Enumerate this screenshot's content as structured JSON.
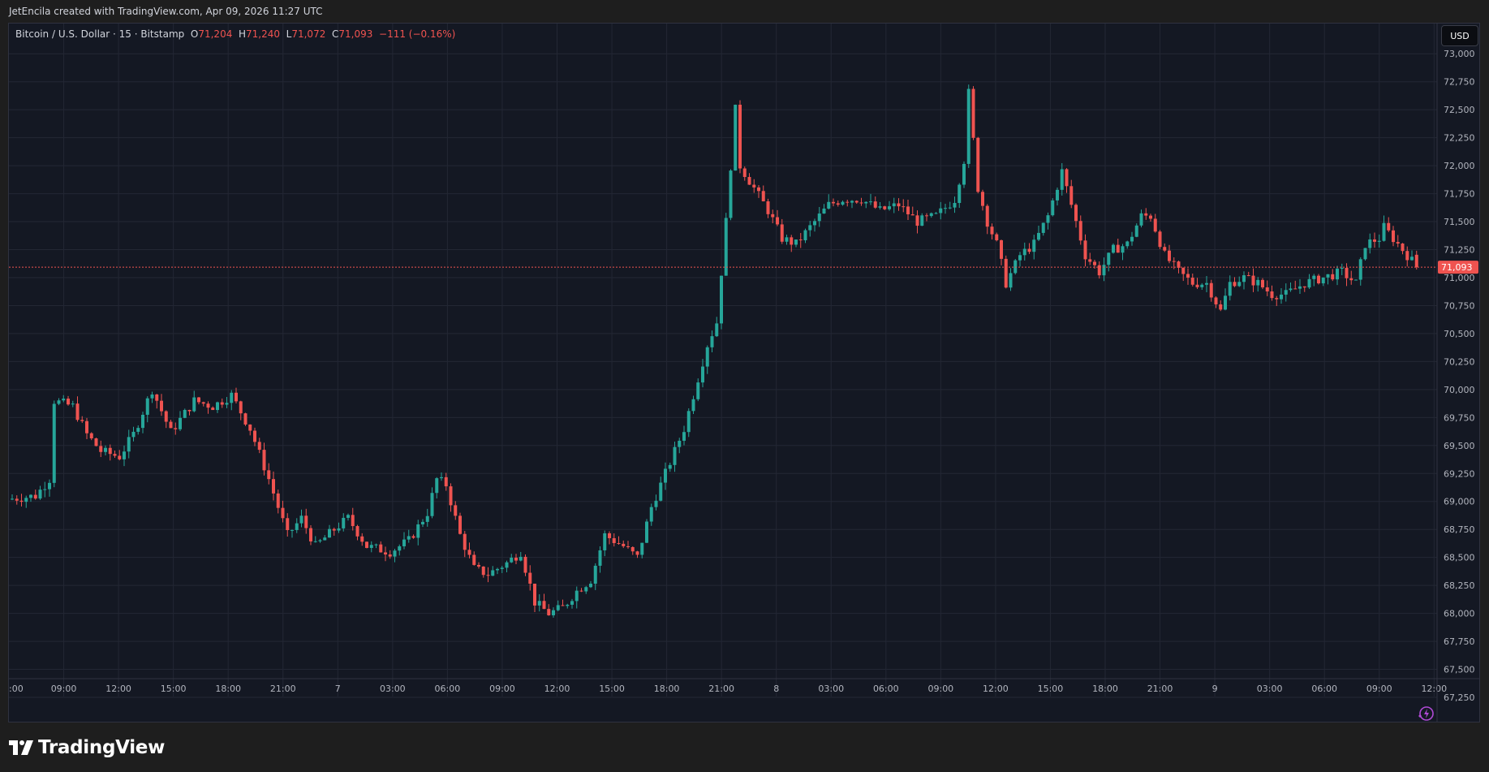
{
  "header": {
    "attribution": "JetEncila created with TradingView.com, Apr 09, 2026 11:27 UTC"
  },
  "legend": {
    "symbol": "Bitcoin / U.S. Dollar · 15 · Bitstamp",
    "o_label": "O",
    "o_value": "71,204",
    "h_label": "H",
    "h_value": "71,240",
    "l_label": "L",
    "l_value": "71,072",
    "c_label": "C",
    "c_value": "71,093",
    "change": "−111 (−0.16%)"
  },
  "currency_button": "USD",
  "footer": {
    "brand": "TradingView"
  },
  "colors": {
    "up": "#26a69a",
    "down": "#ef5350",
    "background": "#141823",
    "grid": "#232734",
    "text": "#d1d4dc"
  },
  "chart_data": {
    "type": "candlestick",
    "title": "Bitcoin / U.S. Dollar · 15 · Bitstamp",
    "ylim": [
      67250,
      73125
    ],
    "y_ticks": [
      "67,250",
      "67,500",
      "67,750",
      "68,000",
      "68,250",
      "68,500",
      "68,750",
      "69,000",
      "69,250",
      "69,500",
      "69,750",
      "70,000",
      "70,250",
      "70,500",
      "70,750",
      "71,000",
      "71,250",
      "71,500",
      "71,750",
      "72,000",
      "72,250",
      "72,500",
      "72,750",
      "73,000"
    ],
    "x_ticks": [
      ":00",
      "09:00",
      "12:00",
      "15:00",
      "18:00",
      "21:00",
      "7",
      "03:00",
      "06:00",
      "09:00",
      "12:00",
      "15:00",
      "18:00",
      "21:00",
      "8",
      "03:00",
      "06:00",
      "09:00",
      "12:00",
      "15:00",
      "18:00",
      "21:00",
      "9",
      "03:00",
      "06:00",
      "09:00",
      "12:00"
    ],
    "last_price": 71093,
    "last_price_label": "71,093",
    "anchors": [
      [
        0,
        69020
      ],
      [
        6,
        69050
      ],
      [
        9,
        69200
      ],
      [
        10,
        69900
      ],
      [
        14,
        69850
      ],
      [
        17,
        69600
      ],
      [
        20,
        69450
      ],
      [
        24,
        69400
      ],
      [
        27,
        69600
      ],
      [
        30,
        69900
      ],
      [
        31,
        70000
      ],
      [
        35,
        69620
      ],
      [
        40,
        69900
      ],
      [
        44,
        69850
      ],
      [
        48,
        69950
      ],
      [
        52,
        69650
      ],
      [
        56,
        69200
      ],
      [
        60,
        68700
      ],
      [
        63,
        68850
      ],
      [
        66,
        68600
      ],
      [
        70,
        68750
      ],
      [
        73,
        68850
      ],
      [
        77,
        68600
      ],
      [
        82,
        68550
      ],
      [
        86,
        68650
      ],
      [
        90,
        68900
      ],
      [
        92,
        69200
      ],
      [
        94,
        69150
      ],
      [
        97,
        68700
      ],
      [
        100,
        68400
      ],
      [
        103,
        68350
      ],
      [
        107,
        68450
      ],
      [
        110,
        68550
      ],
      [
        113,
        68100
      ],
      [
        116,
        68000
      ],
      [
        119,
        68050
      ],
      [
        122,
        68200
      ],
      [
        125,
        68300
      ],
      [
        128,
        68700
      ],
      [
        132,
        68600
      ],
      [
        135,
        68500
      ],
      [
        138,
        68950
      ],
      [
        142,
        69350
      ],
      [
        145,
        69650
      ],
      [
        147,
        69950
      ],
      [
        150,
        70400
      ],
      [
        152,
        70600
      ],
      [
        154,
        71500
      ],
      [
        156,
        72500
      ],
      [
        157,
        72000
      ],
      [
        160,
        71800
      ],
      [
        163,
        71600
      ],
      [
        166,
        71350
      ],
      [
        169,
        71300
      ],
      [
        172,
        71450
      ],
      [
        176,
        71650
      ],
      [
        179,
        71700
      ],
      [
        183,
        71700
      ],
      [
        187,
        71600
      ],
      [
        191,
        71650
      ],
      [
        195,
        71500
      ],
      [
        199,
        71550
      ],
      [
        203,
        71700
      ],
      [
        205,
        72050
      ],
      [
        206,
        72650
      ],
      [
        208,
        71800
      ],
      [
        210,
        71500
      ],
      [
        212,
        71300
      ],
      [
        214,
        70950
      ],
      [
        217,
        71200
      ],
      [
        220,
        71300
      ],
      [
        223,
        71550
      ],
      [
        226,
        71950
      ],
      [
        229,
        71500
      ],
      [
        231,
        71200
      ],
      [
        234,
        71050
      ],
      [
        237,
        71250
      ],
      [
        240,
        71300
      ],
      [
        243,
        71550
      ],
      [
        245,
        71550
      ],
      [
        248,
        71200
      ],
      [
        251,
        71050
      ],
      [
        254,
        70950
      ],
      [
        257,
        70950
      ],
      [
        260,
        70700
      ],
      [
        262,
        70950
      ],
      [
        265,
        71000
      ],
      [
        268,
        70950
      ],
      [
        271,
        70850
      ],
      [
        274,
        70850
      ],
      [
        278,
        70950
      ],
      [
        282,
        71000
      ],
      [
        286,
        71050
      ],
      [
        289,
        70950
      ],
      [
        291,
        71300
      ],
      [
        294,
        71350
      ],
      [
        295,
        71450
      ],
      [
        298,
        71300
      ],
      [
        301,
        71150
      ]
    ]
  }
}
